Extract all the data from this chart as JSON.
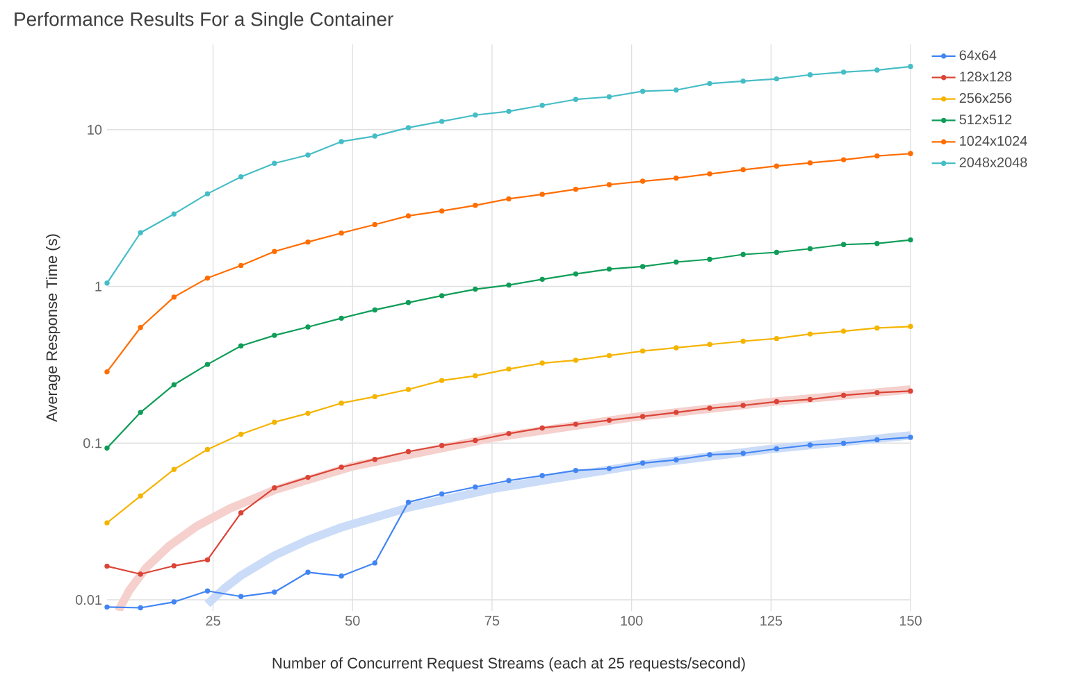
{
  "chart_data": {
    "type": "line",
    "title": "Performance Results For a Single Container",
    "xlabel": "Number of Concurrent Request Streams (each at 25 requests/second)",
    "ylabel": "Average Response Time (s)",
    "x": [
      6,
      12,
      18,
      24,
      30,
      36,
      42,
      48,
      54,
      60,
      66,
      72,
      78,
      84,
      90,
      96,
      102,
      108,
      114,
      120,
      126,
      132,
      138,
      144,
      150
    ],
    "series": [
      {
        "type": "line",
        "marker": "none",
        "color": "#cbdcf8",
        "x": [
          24,
          27,
          30,
          36,
          42,
          48,
          60,
          75,
          100,
          125,
          150
        ],
        "values": [
          0.0094,
          0.0118,
          0.0143,
          0.0192,
          0.0241,
          0.029,
          0.0388,
          0.051,
          0.0714,
          0.0918,
          0.112
        ]
      },
      {
        "type": "line",
        "marker": "none",
        "color": "#f5d0cc",
        "x": [
          8,
          10,
          13,
          17,
          22,
          28,
          36,
          50,
          75,
          100,
          125,
          150
        ],
        "values": [
          0.0085,
          0.0115,
          0.016,
          0.0219,
          0.0294,
          0.0383,
          0.0502,
          0.0711,
          0.108,
          0.146,
          0.183,
          0.22
        ]
      },
      {
        "name": "64x64",
        "color": "#4285f4",
        "values": [
          0.009,
          0.0089,
          0.0097,
          0.0114,
          0.0105,
          0.0112,
          0.015,
          0.0142,
          0.0172,
          0.042,
          0.0474,
          0.0525,
          0.0577,
          0.0621,
          0.067,
          0.0689,
          0.0746,
          0.0782,
          0.0843,
          0.0861,
          0.092,
          0.0973,
          0.0998,
          0.105,
          0.109
        ]
      },
      {
        "name": "128x128",
        "color": "#db4437",
        "values": [
          0.0164,
          0.0146,
          0.0165,
          0.018,
          0.0359,
          0.0518,
          0.0605,
          0.0702,
          0.0788,
          0.0883,
          0.0966,
          0.104,
          0.115,
          0.125,
          0.132,
          0.14,
          0.148,
          0.157,
          0.167,
          0.174,
          0.184,
          0.19,
          0.202,
          0.21,
          0.215
        ]
      },
      {
        "name": "256x256",
        "color": "#f4b400",
        "values": [
          0.031,
          0.046,
          0.068,
          0.091,
          0.114,
          0.136,
          0.155,
          0.18,
          0.198,
          0.22,
          0.251,
          0.269,
          0.297,
          0.324,
          0.338,
          0.362,
          0.387,
          0.406,
          0.426,
          0.447,
          0.465,
          0.497,
          0.518,
          0.543,
          0.555
        ]
      },
      {
        "name": "512x512",
        "color": "#0f9d58",
        "values": [
          0.093,
          0.157,
          0.236,
          0.318,
          0.417,
          0.487,
          0.551,
          0.627,
          0.708,
          0.789,
          0.873,
          0.96,
          1.02,
          1.11,
          1.2,
          1.29,
          1.34,
          1.43,
          1.49,
          1.6,
          1.65,
          1.74,
          1.85,
          1.88,
          1.98
        ]
      },
      {
        "name": "1024x1024",
        "color": "#ff6d00",
        "values": [
          0.285,
          0.547,
          0.855,
          1.13,
          1.36,
          1.67,
          1.92,
          2.19,
          2.48,
          2.82,
          3.03,
          3.29,
          3.62,
          3.87,
          4.17,
          4.46,
          4.69,
          4.91,
          5.22,
          5.55,
          5.86,
          6.14,
          6.43,
          6.8,
          7.04
        ]
      },
      {
        "name": "2048x2048",
        "color": "#46bdc6",
        "values": [
          1.05,
          2.2,
          2.9,
          3.9,
          5.0,
          6.1,
          6.9,
          8.4,
          9.1,
          10.3,
          11.3,
          12.4,
          13.1,
          14.3,
          15.6,
          16.2,
          17.6,
          17.9,
          19.7,
          20.4,
          21.1,
          22.4,
          23.3,
          24.0,
          25.3
        ]
      }
    ],
    "xlim": [
      6,
      150
    ],
    "ylim": [
      0.0085,
      35
    ],
    "xticks": [
      25,
      50,
      75,
      100,
      125,
      150
    ],
    "yticks": [
      0.01,
      0.1,
      1,
      10
    ],
    "log": "y",
    "grid": true,
    "legend": "right",
    "marker": "circle"
  }
}
